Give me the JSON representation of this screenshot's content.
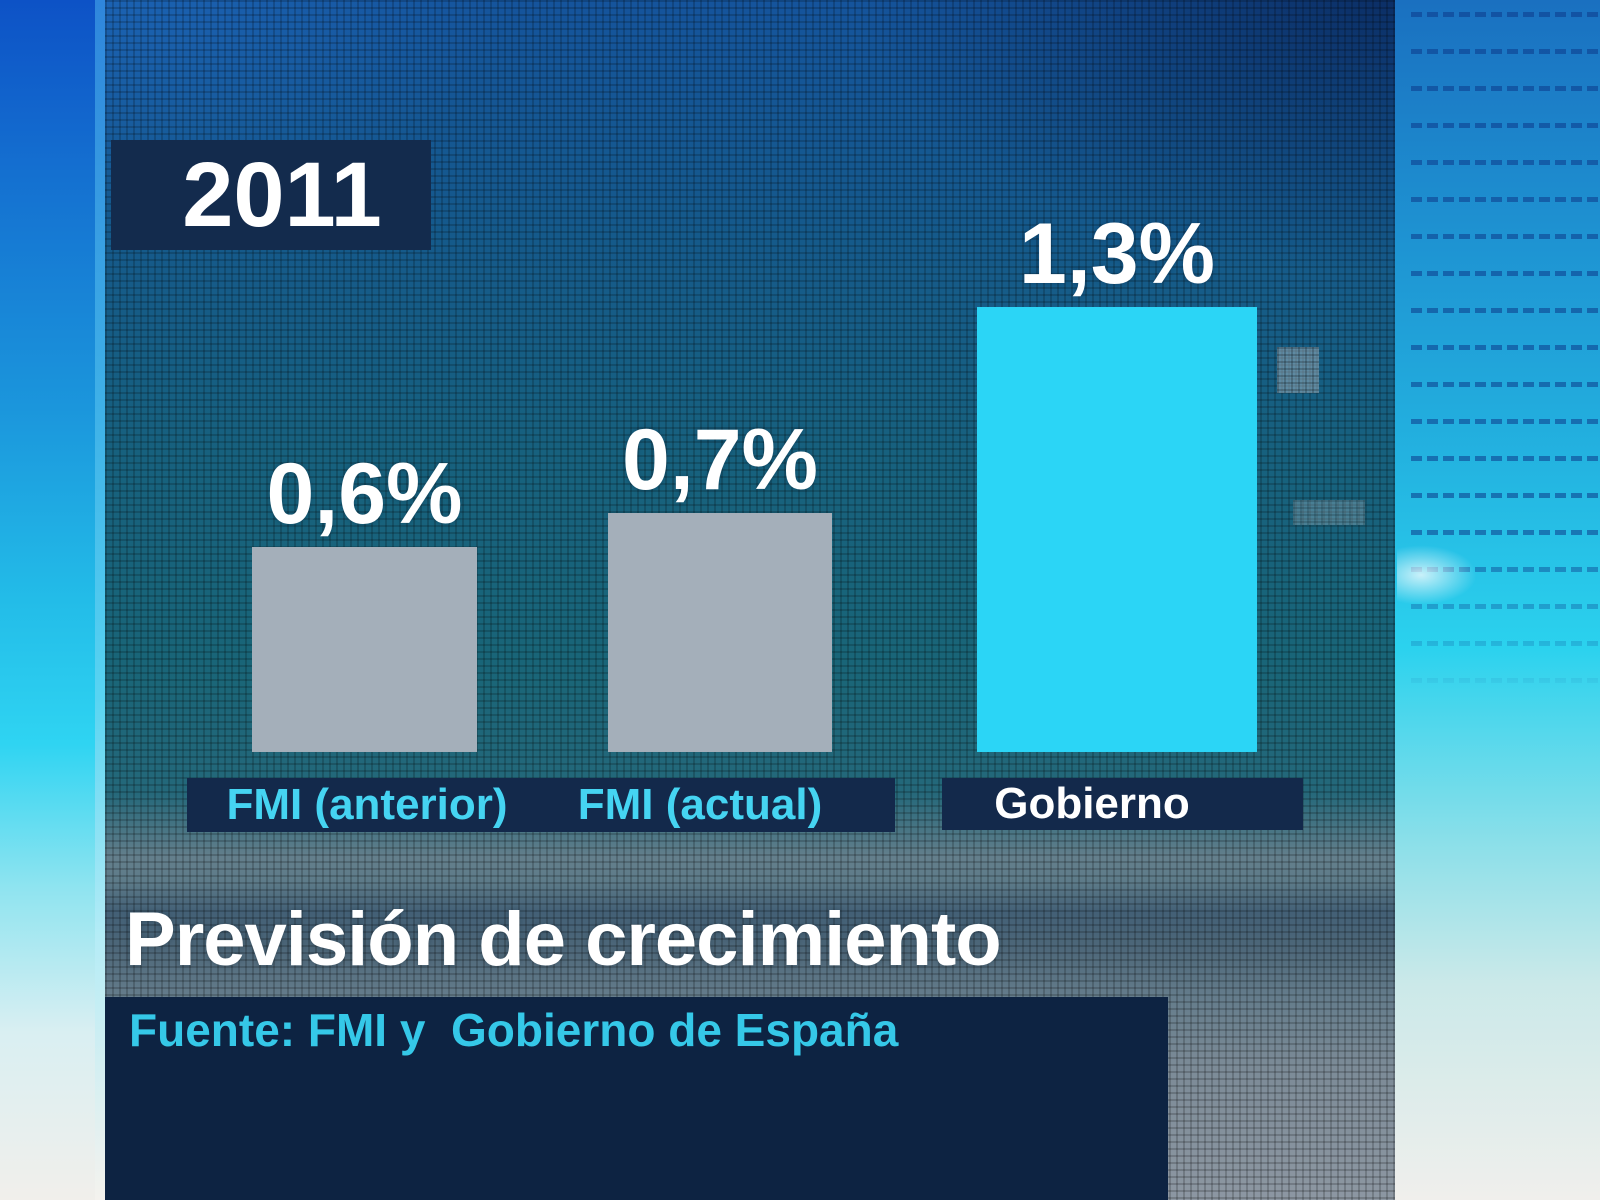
{
  "chart_data": {
    "type": "bar",
    "title": "Previsión de crecimiento",
    "year_label": "2011",
    "categories": [
      "FMI (anterior)",
      "FMI (actual)",
      "Gobierno"
    ],
    "values": [
      0.6,
      0.7,
      1.3
    ],
    "value_labels": [
      "0,6%",
      "0,7%",
      "1,3%"
    ],
    "unit": "%",
    "ylim": [
      0,
      1.4
    ],
    "grid": false,
    "legend_position": "none",
    "source": "Fuente: FMI y  Gobierno de España",
    "bar_colors": [
      "#a4afba",
      "#a4afba",
      "#2bd5f6"
    ]
  },
  "header": {
    "year": "2011"
  },
  "bars": [
    {
      "label": "FMI (anterior)",
      "value": 0.6,
      "value_label": "0,6%",
      "color": "#a4afba",
      "label_color": "#45d4f2"
    },
    {
      "label": "FMI (actual)",
      "value": 0.7,
      "value_label": "0,7%",
      "color": "#a4afba",
      "label_color": "#45d4f2"
    },
    {
      "label": "Gobierno",
      "value": 1.3,
      "value_label": "1,3%",
      "color": "#2bd5f6",
      "label_color": "#ffffff"
    }
  ],
  "footer": {
    "title": "Previsión de crecimiento",
    "source": "Fuente: FMI y  Gobierno de España"
  },
  "colors": {
    "panel_navy_box": "#132b4d",
    "footer_navy_box": "#0d2342",
    "cyan_text": "#35c8e8",
    "white_text": "#ffffff",
    "bar_gray": "#a4afba",
    "bar_cyan": "#2bd5f6"
  }
}
